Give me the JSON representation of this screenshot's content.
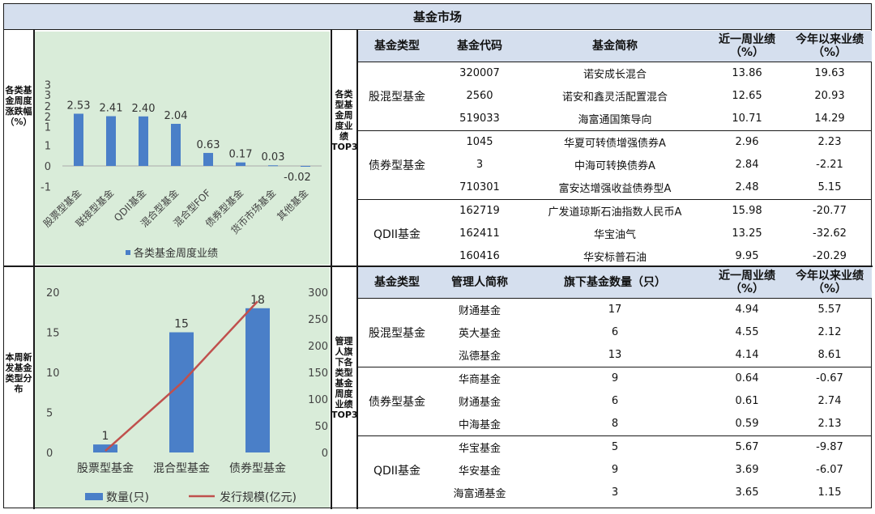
{
  "title": "基金市场",
  "section1_label": "各类基金周度涨跌幅（%）",
  "section2_label": "本周新发基金类型分布",
  "table1_label": "各类型基金周度业绩TOP3",
  "table2_label": "管理人旗下各类型基金周度业绩TOP3",
  "chart_data": [
    {
      "type": "bar",
      "categories": [
        "股票型基金",
        "联接型基金",
        "QDII基金",
        "混合型基金",
        "混合型FOF",
        "债券型基金",
        "货币市场基金",
        "其他基金"
      ],
      "series": [
        {
          "name": "各类基金周度业绩",
          "values": [
            2.53,
            2.41,
            2.4,
            2.04,
            0.63,
            0.17,
            0.03,
            -0.02
          ]
        }
      ],
      "data_labels": [
        "2.53",
        "2.41",
        "2.40",
        "2.04",
        "0.63",
        "0.17",
        "0.03",
        "-0.02"
      ],
      "ylim": [
        -1,
        3
      ],
      "yticks": [
        "-1",
        "0",
        "1",
        "1",
        "2",
        "2",
        "3",
        "3"
      ],
      "bar_color": "#4a7fc8",
      "legend_position": "bottom"
    },
    {
      "type": "bar+line",
      "categories": [
        "股票型基金",
        "混合型基金",
        "债券型基金"
      ],
      "series": [
        {
          "name": "数量(只)",
          "type": "bar",
          "axis": "left",
          "values": [
            1,
            15,
            18
          ],
          "color": "#4a7fc8"
        },
        {
          "name": "发行规模(亿元)",
          "type": "line",
          "axis": "right",
          "values": [
            3,
            130,
            283
          ],
          "color": "#c0504d"
        }
      ],
      "data_labels": [
        "1",
        "15",
        "18"
      ],
      "ylim_left": [
        0,
        20
      ],
      "yticks_left": [
        "0",
        "5",
        "10",
        "15",
        "20"
      ],
      "ylim_right": [
        0,
        300
      ],
      "yticks_right": [
        "0",
        "50",
        "100",
        "150",
        "200",
        "250",
        "300"
      ],
      "legend_position": "bottom"
    }
  ],
  "table1": {
    "headers": [
      "基金类型",
      "基金代码",
      "基金简称",
      "近一周业绩（%）",
      "今年以来业绩（%）"
    ],
    "groups": [
      {
        "type": "股混型基金",
        "rows": [
          {
            "code": "320007",
            "name": "诺安成长混合",
            "week": "13.86",
            "ytd": "19.63"
          },
          {
            "code": "2560",
            "name": "诺安和鑫灵活配置混合",
            "week": "12.65",
            "ytd": "20.93"
          },
          {
            "code": "519033",
            "name": "海富通国策导向",
            "week": "10.71",
            "ytd": "14.29"
          }
        ]
      },
      {
        "type": "债券型基金",
        "rows": [
          {
            "code": "1045",
            "name": "华夏可转债增强债券A",
            "week": "2.96",
            "ytd": "2.23"
          },
          {
            "code": "3",
            "name": "中海可转换债券A",
            "week": "2.84",
            "ytd": "-2.21"
          },
          {
            "code": "710301",
            "name": "富安达增强收益债券型A",
            "week": "2.48",
            "ytd": "5.15"
          }
        ]
      },
      {
        "type": "QDII基金",
        "rows": [
          {
            "code": "162719",
            "name": "广发道琼斯石油指数人民币A",
            "week": "15.98",
            "ytd": "-20.77"
          },
          {
            "code": "162411",
            "name": "华宝油气",
            "week": "13.25",
            "ytd": "-32.62"
          },
          {
            "code": "160416",
            "name": "华安标普石油",
            "week": "9.95",
            "ytd": "-20.29"
          }
        ]
      }
    ]
  },
  "table2": {
    "headers": [
      "基金类型",
      "管理人简称",
      "旗下基金数量（只）",
      "近一周业绩（%）",
      "今年以来业绩（%）"
    ],
    "groups": [
      {
        "type": "股混型基金",
        "rows": [
          {
            "manager": "财通基金",
            "count": "17",
            "week": "4.94",
            "ytd": "5.57"
          },
          {
            "manager": "英大基金",
            "count": "6",
            "week": "4.55",
            "ytd": "2.12"
          },
          {
            "manager": "泓德基金",
            "count": "13",
            "week": "4.14",
            "ytd": "8.61"
          }
        ]
      },
      {
        "type": "债券型基金",
        "rows": [
          {
            "manager": "华商基金",
            "count": "9",
            "week": "0.64",
            "ytd": "-0.67"
          },
          {
            "manager": "财通基金",
            "count": "6",
            "week": "0.61",
            "ytd": "2.74"
          },
          {
            "manager": "中海基金",
            "count": "8",
            "week": "0.59",
            "ytd": "2.13"
          }
        ]
      },
      {
        "type": "QDII基金",
        "rows": [
          {
            "manager": "华宝基金",
            "count": "5",
            "week": "5.67",
            "ytd": "-9.87"
          },
          {
            "manager": "华安基金",
            "count": "9",
            "week": "3.69",
            "ytd": "-6.07"
          },
          {
            "manager": "海富通基金",
            "count": "3",
            "week": "3.65",
            "ytd": "1.15"
          }
        ]
      }
    ]
  }
}
